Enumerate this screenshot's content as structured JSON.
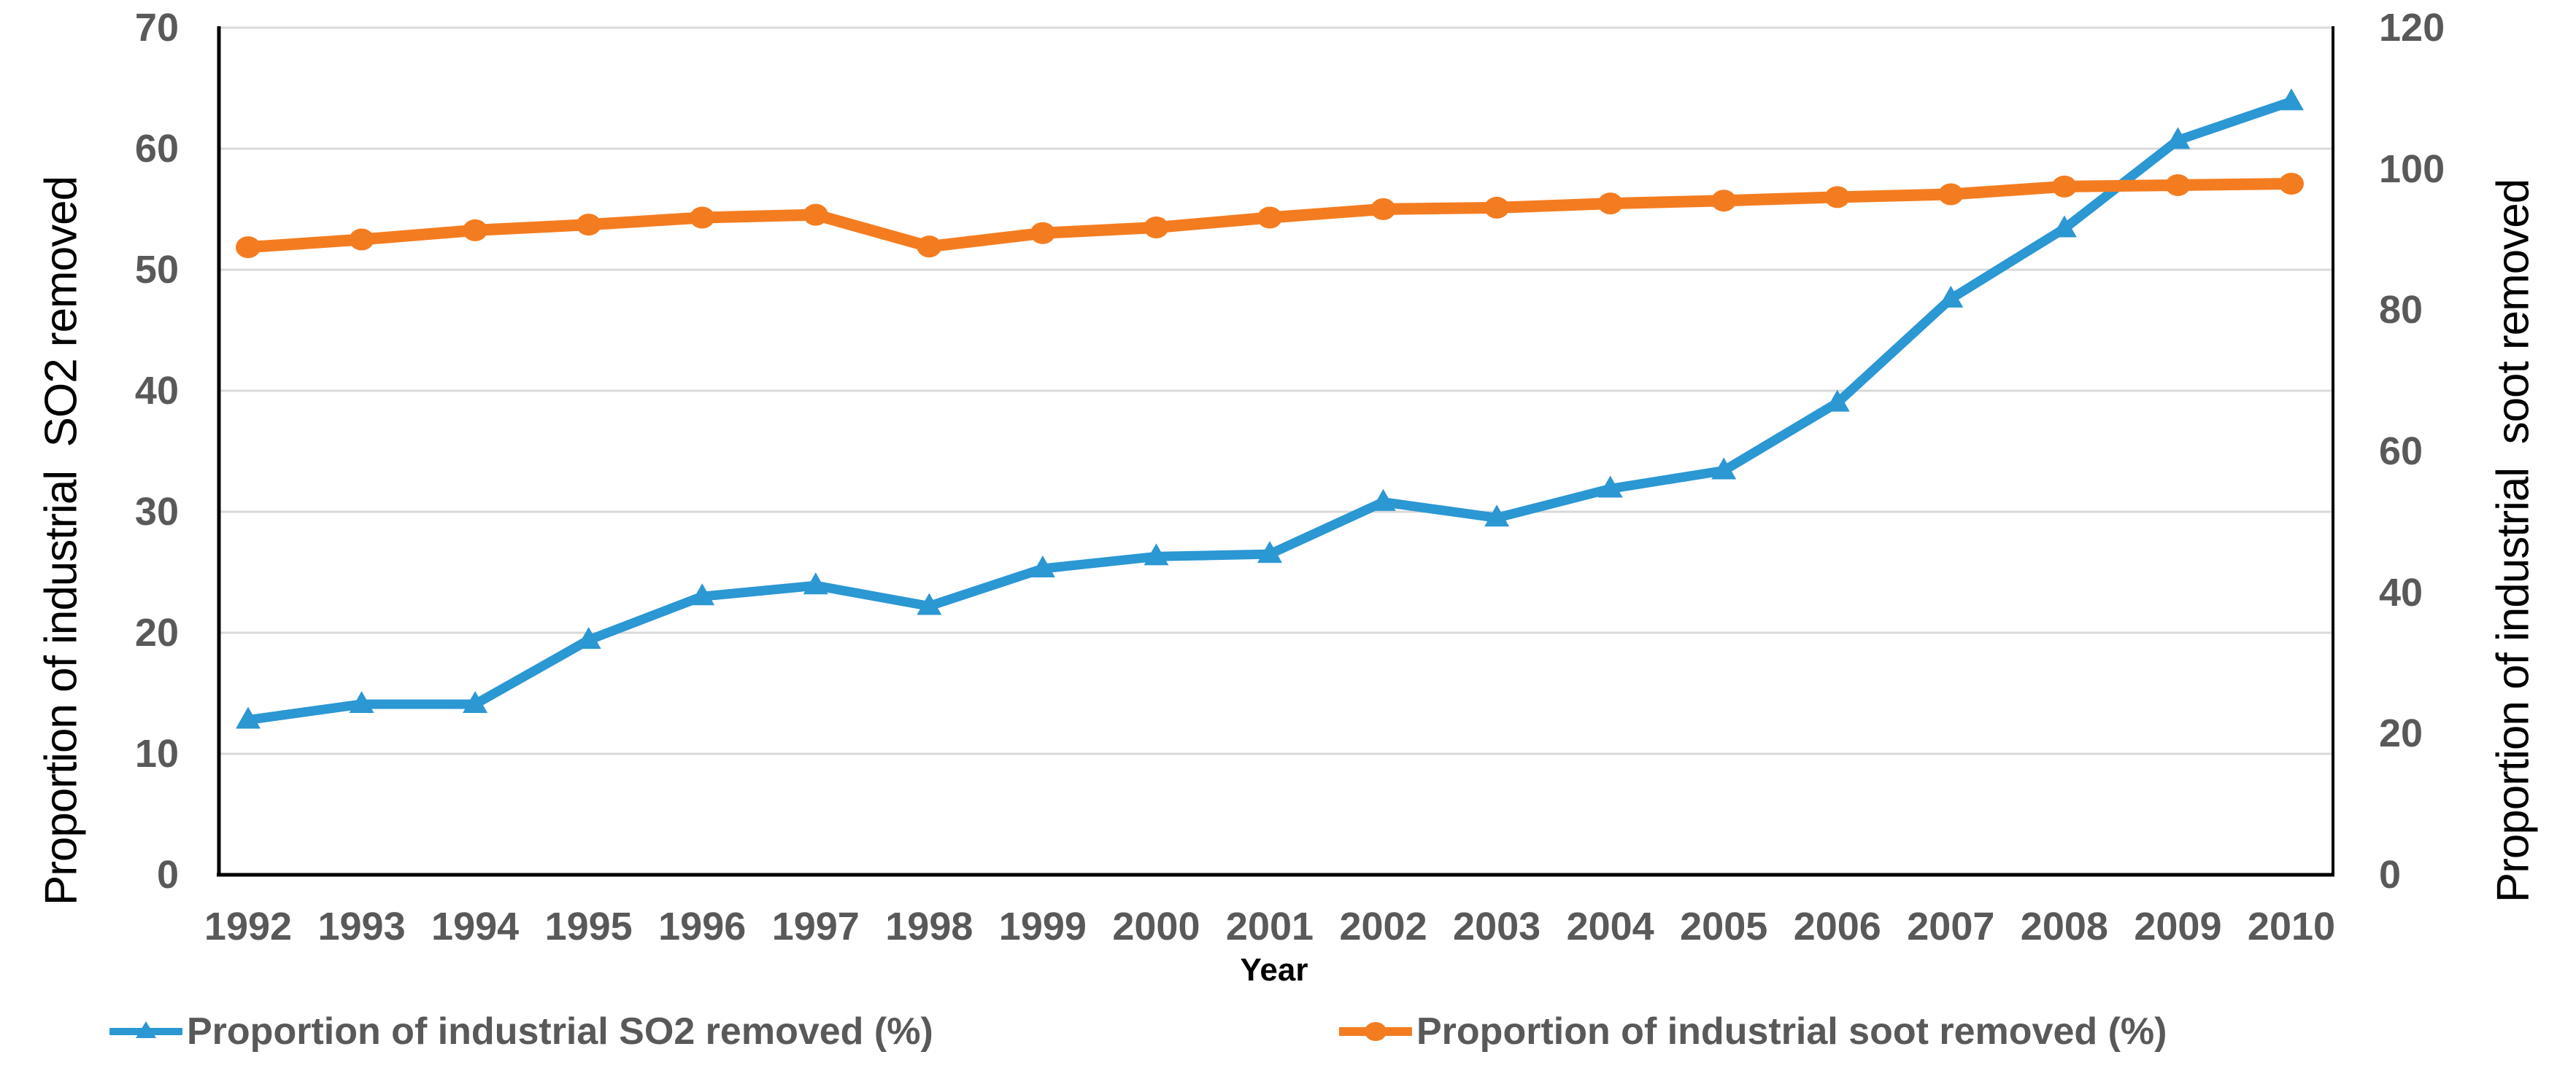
{
  "page": {
    "background": "#ffffff"
  },
  "chart_data": {
    "type": "line",
    "x_label": "Year",
    "x": [
      1992,
      1993,
      1994,
      1995,
      1996,
      1997,
      1998,
      1999,
      2000,
      2001,
      2002,
      2003,
      2004,
      2005,
      2006,
      2007,
      2008,
      2009,
      2010
    ],
    "series": [
      {
        "name": "Proportion of industrial SO2 removed (%)",
        "axis": "left",
        "color": "#2B97D3",
        "marker": "triangle",
        "values": [
          12.8,
          14.1,
          14.1,
          19.4,
          23.0,
          23.9,
          22.2,
          25.3,
          26.3,
          26.5,
          30.8,
          29.5,
          31.9,
          33.4,
          39.0,
          47.6,
          53.4,
          60.7,
          63.9
        ]
      },
      {
        "name": "Proportion of industrial soot removed (%)",
        "axis": "right",
        "color": "#F47C20",
        "marker": "circle",
        "values": [
          88.9,
          90.0,
          91.3,
          92.1,
          93.1,
          93.5,
          89.0,
          90.9,
          91.7,
          93.1,
          94.3,
          94.5,
          95.1,
          95.5,
          96.0,
          96.4,
          97.5,
          97.7,
          97.9
        ]
      }
    ],
    "left_axis": {
      "title": "Proportion of industrial  SO2 removed",
      "min": 0,
      "max": 70,
      "ticks": [
        0,
        10,
        20,
        30,
        40,
        50,
        60,
        70
      ]
    },
    "right_axis": {
      "title": "Proportion of industrial  soot removed",
      "min": 0,
      "max": 120,
      "ticks": [
        0,
        20,
        40,
        60,
        80,
        100,
        120
      ]
    },
    "grid": true,
    "legend_position": "bottom",
    "styles": {
      "grid_color": "#D9D9D9",
      "axis_line_color": "#000000",
      "tick_color": "#595959",
      "axis_title_color": "#000000",
      "legend_text_color": "#595959"
    }
  }
}
